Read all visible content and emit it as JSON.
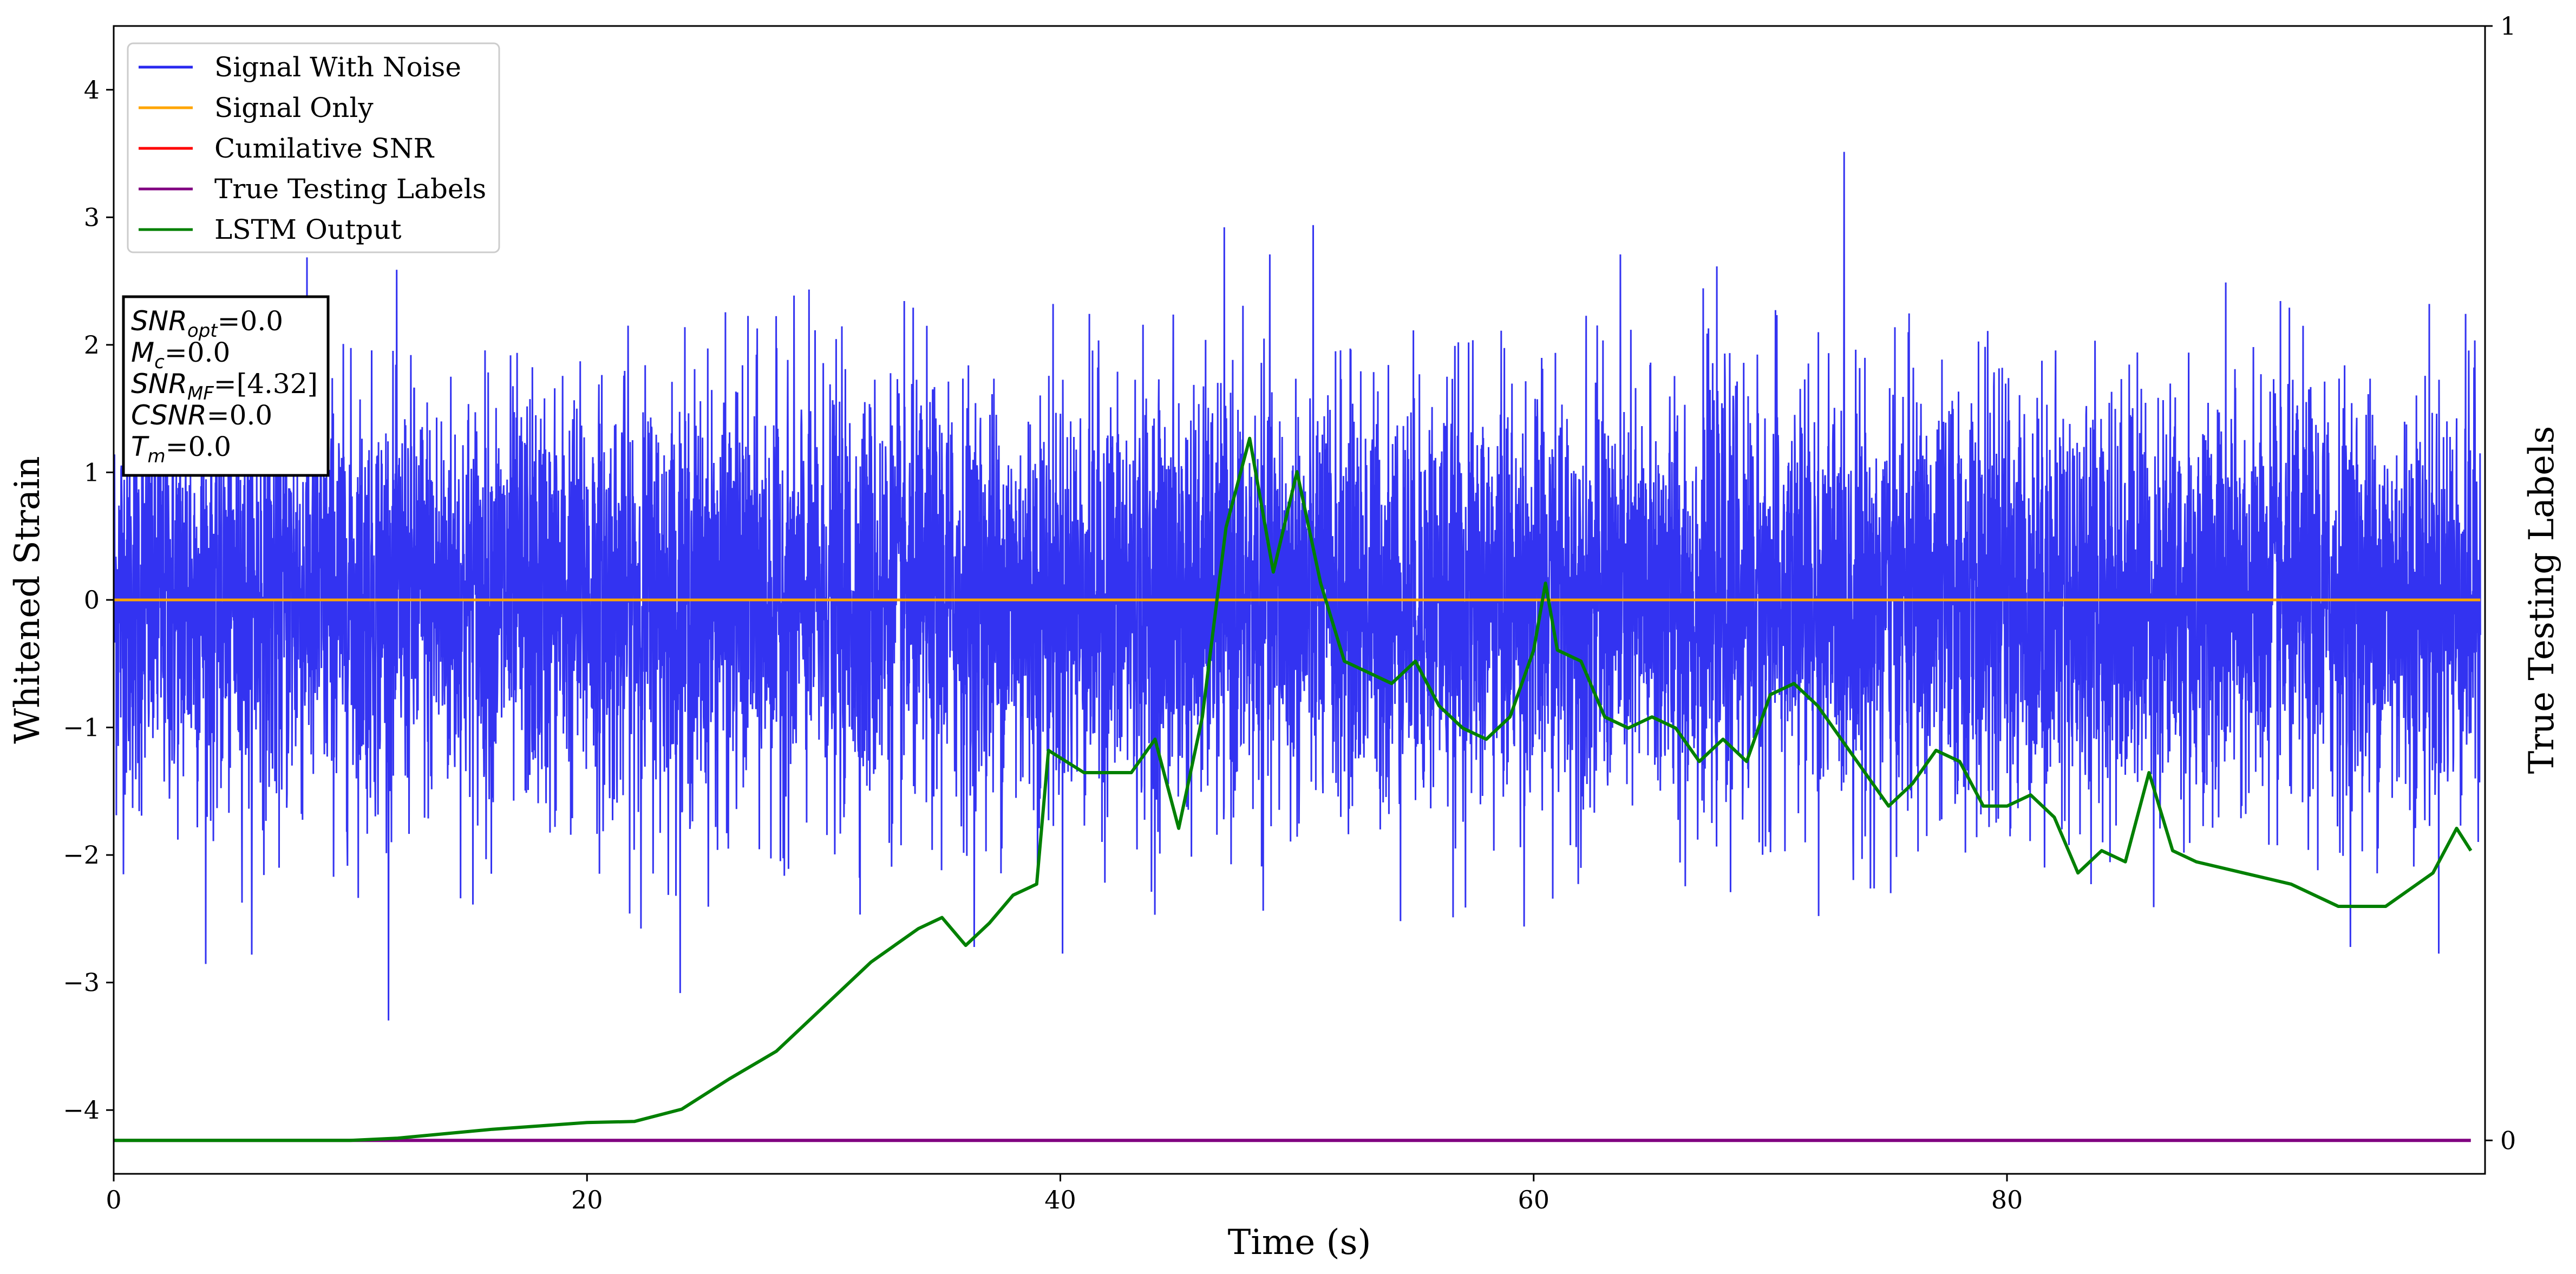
{
  "chart_data": {
    "type": "line",
    "xlabel": "Time (s)",
    "ylabel": "Whitened Strain",
    "y2label": "True Testing Labels",
    "xlim": [
      0,
      100.2
    ],
    "ylim": [
      -4.5,
      4.5
    ],
    "y2lim": [
      -0.03,
      1.0
    ],
    "x_ticks": [
      0,
      20,
      40,
      60,
      80
    ],
    "y_ticks": [
      -4,
      -3,
      -2,
      -1,
      0,
      1,
      2,
      3,
      4
    ],
    "y2_ticks": [
      0,
      1
    ],
    "grid": false,
    "legend": {
      "position": "top-left",
      "entries": [
        {
          "name": "Signal With Noise",
          "color": "#2828f0"
        },
        {
          "name": "Signal Only",
          "color": "#ffa500"
        },
        {
          "name": "Cumilative SNR",
          "color": "#ff0000"
        },
        {
          "name": "True Testing Labels",
          "color": "#800080"
        },
        {
          "name": "LSTM Output",
          "color": "#008000"
        }
      ]
    },
    "info_box": [
      {
        "symbol": "SNR",
        "sub": "opt",
        "value": "=0.0"
      },
      {
        "symbol": "M",
        "sub": "c",
        "value": "=0.0"
      },
      {
        "symbol": "SNR",
        "sub": "MF",
        "value": "=[4.32]"
      },
      {
        "symbol": "CSNR",
        "sub": "",
        "value": "=0.0"
      },
      {
        "symbol": "T",
        "sub": "m",
        "value": "=0.0"
      }
    ],
    "series": [
      {
        "name": "Signal With Noise",
        "axis": "left",
        "color": "#2828f0",
        "description_range": [
          -3.7,
          3.6
        ],
        "typical_band": [
          -1.7,
          1.7
        ]
      },
      {
        "name": "Signal Only",
        "axis": "left",
        "color": "#ffa500",
        "x": [
          0,
          100
        ],
        "y": [
          0,
          0
        ]
      },
      {
        "name": "True Testing Labels",
        "axis": "right",
        "color": "#800080",
        "x": [
          0,
          99.6
        ],
        "y": [
          0,
          0
        ]
      },
      {
        "name": "LSTM Output",
        "axis": "right",
        "color": "#008000",
        "x": [
          0,
          10,
          12,
          14,
          16,
          18,
          20,
          22,
          24,
          26,
          28,
          30,
          32,
          34,
          35,
          36,
          37,
          38,
          39,
          39.5,
          41,
          43,
          44,
          45,
          46,
          47,
          48,
          49,
          50,
          51,
          52,
          53,
          54,
          55,
          56,
          57,
          58,
          59,
          60,
          60.5,
          61,
          62,
          63,
          64,
          65,
          66,
          67,
          68,
          69,
          70,
          71,
          72,
          73,
          74,
          75,
          76,
          77,
          78,
          79,
          80,
          81,
          82,
          83,
          84,
          85,
          86,
          87,
          88,
          90,
          92,
          94,
          96,
          98,
          99,
          99.6
        ],
        "y": [
          0,
          0,
          0.002,
          0.006,
          0.01,
          0.013,
          0.016,
          0.017,
          0.028,
          0.055,
          0.08,
          0.12,
          0.16,
          0.19,
          0.2,
          0.175,
          0.195,
          0.22,
          0.23,
          0.35,
          0.33,
          0.33,
          0.36,
          0.28,
          0.38,
          0.55,
          0.63,
          0.51,
          0.6,
          0.5,
          0.43,
          0.42,
          0.41,
          0.43,
          0.39,
          0.37,
          0.36,
          0.38,
          0.44,
          0.5,
          0.44,
          0.43,
          0.38,
          0.37,
          0.38,
          0.37,
          0.34,
          0.36,
          0.34,
          0.4,
          0.41,
          0.39,
          0.36,
          0.33,
          0.3,
          0.32,
          0.35,
          0.34,
          0.3,
          0.3,
          0.31,
          0.29,
          0.24,
          0.26,
          0.25,
          0.33,
          0.26,
          0.25,
          0.24,
          0.23,
          0.21,
          0.21,
          0.24,
          0.28,
          0.26
        ]
      }
    ]
  }
}
